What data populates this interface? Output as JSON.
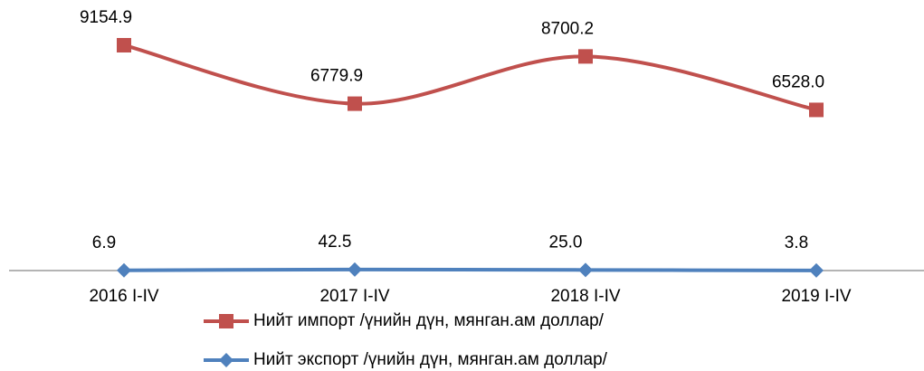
{
  "chart_data": {
    "type": "line",
    "categories": [
      "2016 I-IV",
      "2017 I-IV",
      "2018 I-IV",
      "2019 I-IV"
    ],
    "series": [
      {
        "name": "Нийт импорт /үнийн дүн, мянган.ам доллар/",
        "color": "#c0504d",
        "marker": "square",
        "values": [
          9154.9,
          6779.9,
          8700.2,
          6528.0
        ],
        "value_labels": [
          "9154.9",
          "6779.9",
          "8700.2",
          "6528.0"
        ]
      },
      {
        "name": "Нийт экспорт /үнийн дүн, мянган.ам доллар/",
        "color": "#4f81bd",
        "marker": "diamond",
        "values": [
          6.9,
          42.5,
          25.0,
          3.8
        ],
        "value_labels": [
          "6.9",
          "42.5",
          "25.0",
          "3.8"
        ]
      }
    ],
    "ylim": [
      0,
      10000
    ],
    "smooth": true
  }
}
